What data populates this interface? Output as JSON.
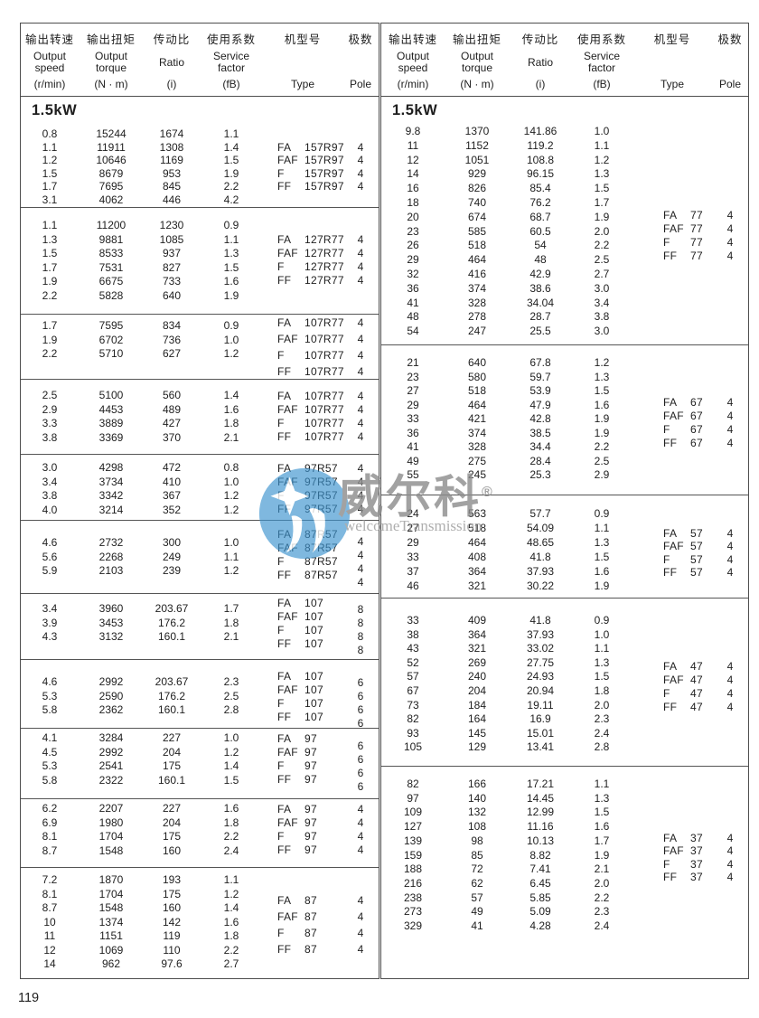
{
  "page": {
    "number": "119"
  },
  "section_label": "1.5kW",
  "watermark": {
    "brand": "威尔科",
    "registered": "®",
    "subtitle": "welcomeTransmission",
    "logo_color": "#3d94cf"
  },
  "header_columns": [
    {
      "zh": "输出转速",
      "en": [
        "Output",
        "speed"
      ],
      "unit": "(r/min)"
    },
    {
      "zh": "输出扭矩",
      "en": [
        "Output",
        "torque"
      ],
      "unit": "(N · m)"
    },
    {
      "zh": "传动比",
      "en": [
        "Ratio"
      ],
      "unit": "(i)"
    },
    {
      "zh": "使用系数",
      "en": [
        "Service",
        "factor"
      ],
      "unit": "(fB)"
    },
    {
      "zh": "机型号",
      "en": [],
      "unit": "Type"
    },
    {
      "zh": "极数",
      "en": [],
      "unit": "Pole"
    }
  ],
  "panels": {
    "left": {
      "power": "1.5kW",
      "blocks": [
        {
          "rows": [
            [
              "0.8",
              "15244",
              "1674",
              "1.1"
            ],
            [
              "1.1",
              "11911",
              "1308",
              "1.4"
            ],
            [
              "1.2",
              "10646",
              "1169",
              "1.5"
            ],
            [
              "1.5",
              "8679",
              "953",
              "1.9"
            ],
            [
              "1.7",
              "7695",
              "845",
              "2.2"
            ],
            [
              "3.1",
              "4062",
              "446",
              "4.2"
            ]
          ],
          "types": [
            [
              "FA",
              "157R97"
            ],
            [
              "FAF",
              "157R97"
            ],
            [
              "F",
              "157R97"
            ],
            [
              "FF",
              "157R97"
            ]
          ],
          "poles": [
            "4",
            "4",
            "4",
            "4"
          ]
        },
        {
          "rows": [
            [
              "1.1",
              "11200",
              "1230",
              "0.9"
            ],
            [
              "1.3",
              "9881",
              "1085",
              "1.1"
            ],
            [
              "1.5",
              "8533",
              "937",
              "1.3"
            ],
            [
              "1.7",
              "7531",
              "827",
              "1.5"
            ],
            [
              "1.9",
              "6675",
              "733",
              "1.6"
            ],
            [
              "2.2",
              "5828",
              "640",
              "1.9"
            ]
          ],
          "types": [
            [
              "FA",
              "127R77"
            ],
            [
              "FAF",
              "127R77"
            ],
            [
              "F",
              "127R77"
            ],
            [
              "FF",
              "127R77"
            ]
          ],
          "poles": [
            "4",
            "4",
            "4",
            "4"
          ]
        },
        {
          "rows": [
            [
              "1.7",
              "7595",
              "834",
              "0.9"
            ],
            [
              "1.9",
              "6702",
              "736",
              "1.0"
            ],
            [
              "2.2",
              "5710",
              "627",
              "1.2"
            ]
          ],
          "types": [
            [
              "FA",
              "107R77"
            ],
            [
              "FAF",
              "107R77"
            ],
            [
              "F",
              "107R77"
            ],
            [
              "FF",
              "107R77"
            ]
          ],
          "poles": [
            "4",
            "4",
            "4",
            "4"
          ]
        },
        {
          "rows": [
            [
              "2.5",
              "5100",
              "560",
              "1.4"
            ],
            [
              "2.9",
              "4453",
              "489",
              "1.6"
            ],
            [
              "3.3",
              "3889",
              "427",
              "1.8"
            ],
            [
              "3.8",
              "3369",
              "370",
              "2.1"
            ]
          ],
          "types": [
            [
              "FA",
              "107R77"
            ],
            [
              "FAF",
              "107R77"
            ],
            [
              "F",
              "107R77"
            ],
            [
              "FF",
              "107R77"
            ]
          ],
          "poles": [
            "4",
            "4",
            "4",
            "4"
          ]
        },
        {
          "rows": [
            [
              "3.0",
              "4298",
              "472",
              "0.8"
            ],
            [
              "3.4",
              "3734",
              "410",
              "1.0"
            ],
            [
              "3.8",
              "3342",
              "367",
              "1.2"
            ],
            [
              "4.0",
              "3214",
              "352",
              "1.2"
            ]
          ],
          "types": [
            [
              "FA",
              "97R57"
            ],
            [
              "FAF",
              "97R57"
            ],
            [
              "F",
              "97R57"
            ],
            [
              "FF",
              "97R57"
            ]
          ],
          "poles": [
            "4",
            "4",
            "4",
            "4"
          ]
        },
        {
          "rows": [
            [
              "4.6",
              "2732",
              "300",
              "1.0"
            ],
            [
              "5.6",
              "2268",
              "249",
              "1.1"
            ],
            [
              "5.9",
              "2103",
              "239",
              "1.2"
            ]
          ],
          "types": [
            [
              "FA",
              "87R57"
            ],
            [
              "FAF",
              "87R57"
            ],
            [
              "F",
              "87R57"
            ],
            [
              "FF",
              "87R57"
            ]
          ],
          "poles": [
            "4",
            "4",
            "4",
            "4"
          ]
        },
        {
          "rows": [
            [
              "3.4",
              "3960",
              "203.67",
              "1.7"
            ],
            [
              "3.9",
              "3453",
              "176.2",
              "1.8"
            ],
            [
              "4.3",
              "3132",
              "160.1",
              "2.1"
            ]
          ],
          "types": [
            [
              "FA",
              "107"
            ],
            [
              "FAF",
              "107"
            ],
            [
              "F",
              "107"
            ],
            [
              "FF",
              "107"
            ]
          ],
          "poles": [
            "8",
            "8",
            "8",
            "8"
          ]
        },
        {
          "rows": [
            [
              "4.6",
              "2992",
              "203.67",
              "2.3"
            ],
            [
              "5.3",
              "2590",
              "176.2",
              "2.5"
            ],
            [
              "5.8",
              "2362",
              "160.1",
              "2.8"
            ]
          ],
          "types": [
            [
              "FA",
              "107"
            ],
            [
              "FAF",
              "107"
            ],
            [
              "F",
              "107"
            ],
            [
              "FF",
              "107"
            ]
          ],
          "poles": [
            "6",
            "6",
            "6",
            "6"
          ]
        },
        {
          "rows": [
            [
              "4.1",
              "3284",
              "227",
              "1.0"
            ],
            [
              "4.5",
              "2992",
              "204",
              "1.2"
            ],
            [
              "5.3",
              "2541",
              "175",
              "1.4"
            ],
            [
              "5.8",
              "2322",
              "160.1",
              "1.5"
            ]
          ],
          "types": [
            [
              "FA",
              "97"
            ],
            [
              "FAF",
              "97"
            ],
            [
              "F",
              "97"
            ],
            [
              "FF",
              "97"
            ]
          ],
          "poles": [
            "6",
            "6",
            "6",
            "6"
          ]
        },
        {
          "rows": [
            [
              "6.2",
              "2207",
              "227",
              "1.6"
            ],
            [
              "6.9",
              "1980",
              "204",
              "1.8"
            ],
            [
              "8.1",
              "1704",
              "175",
              "2.2"
            ],
            [
              "8.7",
              "1548",
              "160",
              "2.4"
            ]
          ],
          "types": [
            [
              "FA",
              "97"
            ],
            [
              "FAF",
              "97"
            ],
            [
              "F",
              "97"
            ],
            [
              "FF",
              "97"
            ]
          ],
          "poles": [
            "4",
            "4",
            "4",
            "4"
          ]
        },
        {
          "rows": [
            [
              "7.2",
              "1870",
              "193",
              "1.1"
            ],
            [
              "8.1",
              "1704",
              "175",
              "1.2"
            ],
            [
              "8.7",
              "1548",
              "160",
              "1.4"
            ],
            [
              "10",
              "1374",
              "142",
              "1.6"
            ],
            [
              "11",
              "1151",
              "119",
              "1.8"
            ],
            [
              "12",
              "1069",
              "110",
              "2.2"
            ],
            [
              "14",
              "962",
              "97.6",
              "2.7"
            ]
          ],
          "types": [
            [
              "FA",
              "87"
            ],
            [
              "FAF",
              "87"
            ],
            [
              "F",
              "87"
            ],
            [
              "FF",
              "87"
            ]
          ],
          "poles": [
            "4",
            "4",
            "4",
            "4"
          ]
        }
      ]
    },
    "right": {
      "power": "1.5kW",
      "blocks": [
        {
          "rows": [
            [
              "9.8",
              "1370",
              "141.86",
              "1.0"
            ],
            [
              "11",
              "1152",
              "119.2",
              "1.1"
            ],
            [
              "12",
              "1051",
              "108.8",
              "1.2"
            ],
            [
              "14",
              "929",
              "96.15",
              "1.3"
            ],
            [
              "16",
              "826",
              "85.4",
              "1.5"
            ],
            [
              "18",
              "740",
              "76.2",
              "1.7"
            ],
            [
              "20",
              "674",
              "68.7",
              "1.9"
            ],
            [
              "23",
              "585",
              "60.5",
              "2.0"
            ],
            [
              "26",
              "518",
              "54",
              "2.2"
            ],
            [
              "29",
              "464",
              "48",
              "2.5"
            ],
            [
              "32",
              "416",
              "42.9",
              "2.7"
            ],
            [
              "36",
              "374",
              "38.6",
              "3.0"
            ],
            [
              "41",
              "328",
              "34.04",
              "3.4"
            ],
            [
              "48",
              "278",
              "28.7",
              "3.8"
            ],
            [
              "54",
              "247",
              "25.5",
              "3.0"
            ]
          ],
          "types": [
            [
              "FA",
              "77"
            ],
            [
              "FAF",
              "77"
            ],
            [
              "F",
              "77"
            ],
            [
              "FF",
              "77"
            ]
          ],
          "poles": [
            "4",
            "4",
            "4",
            "4"
          ]
        },
        {
          "rows": [
            [
              "21",
              "640",
              "67.8",
              "1.2"
            ],
            [
              "23",
              "580",
              "59.7",
              "1.3"
            ],
            [
              "27",
              "518",
              "53.9",
              "1.5"
            ],
            [
              "29",
              "464",
              "47.9",
              "1.6"
            ],
            [
              "33",
              "421",
              "42.8",
              "1.9"
            ],
            [
              "36",
              "374",
              "38.5",
              "1.9"
            ],
            [
              "41",
              "328",
              "34.4",
              "2.2"
            ],
            [
              "49",
              "275",
              "28.4",
              "2.5"
            ],
            [
              "55",
              "245",
              "25.3",
              "2.9"
            ]
          ],
          "types": [
            [
              "FA",
              "67"
            ],
            [
              "FAF",
              "67"
            ],
            [
              "F",
              "67"
            ],
            [
              "FF",
              "67"
            ]
          ],
          "poles": [
            "4",
            "4",
            "4",
            "4"
          ]
        },
        {
          "rows": [
            [
              "24",
              "563",
              "57.7",
              "0.9"
            ],
            [
              "27",
              "518",
              "54.09",
              "1.1"
            ],
            [
              "29",
              "464",
              "48.65",
              "1.3"
            ],
            [
              "33",
              "408",
              "41.8",
              "1.5"
            ],
            [
              "37",
              "364",
              "37.93",
              "1.6"
            ],
            [
              "46",
              "321",
              "30.22",
              "1.9"
            ]
          ],
          "types": [
            [
              "FA",
              "57"
            ],
            [
              "FAF",
              "57"
            ],
            [
              "F",
              "57"
            ],
            [
              "FF",
              "57"
            ]
          ],
          "poles": [
            "4",
            "4",
            "4",
            "4"
          ]
        },
        {
          "rows": [
            [
              "33",
              "409",
              "41.8",
              "0.9"
            ],
            [
              "38",
              "364",
              "37.93",
              "1.0"
            ],
            [
              "43",
              "321",
              "33.02",
              "1.1"
            ],
            [
              "52",
              "269",
              "27.75",
              "1.3"
            ],
            [
              "57",
              "240",
              "24.93",
              "1.5"
            ],
            [
              "67",
              "204",
              "20.94",
              "1.8"
            ],
            [
              "73",
              "184",
              "19.11",
              "2.0"
            ],
            [
              "82",
              "164",
              "16.9",
              "2.3"
            ],
            [
              "93",
              "145",
              "15.01",
              "2.4"
            ],
            [
              "105",
              "129",
              "13.41",
              "2.8"
            ]
          ],
          "types": [
            [
              "FA",
              "47"
            ],
            [
              "FAF",
              "47"
            ],
            [
              "F",
              "47"
            ],
            [
              "FF",
              "47"
            ]
          ],
          "poles": [
            "4",
            "4",
            "4",
            "4"
          ]
        },
        {
          "rows": [
            [
              "82",
              "166",
              "17.21",
              "1.1"
            ],
            [
              "97",
              "140",
              "14.45",
              "1.3"
            ],
            [
              "109",
              "132",
              "12.99",
              "1.5"
            ],
            [
              "127",
              "108",
              "11.16",
              "1.6"
            ],
            [
              "139",
              "98",
              "10.13",
              "1.7"
            ],
            [
              "159",
              "85",
              "8.82",
              "1.9"
            ],
            [
              "188",
              "72",
              "7.41",
              "2.1"
            ],
            [
              "216",
              "62",
              "6.45",
              "2.0"
            ],
            [
              "238",
              "57",
              "5.85",
              "2.2"
            ],
            [
              "273",
              "49",
              "5.09",
              "2.3"
            ],
            [
              "329",
              "41",
              "4.28",
              "2.4"
            ]
          ],
          "types": [
            [
              "FA",
              "37"
            ],
            [
              "FAF",
              "37"
            ],
            [
              "F",
              "37"
            ],
            [
              "FF",
              "37"
            ]
          ],
          "poles": [
            "4",
            "4",
            "4",
            "4"
          ]
        }
      ]
    }
  }
}
